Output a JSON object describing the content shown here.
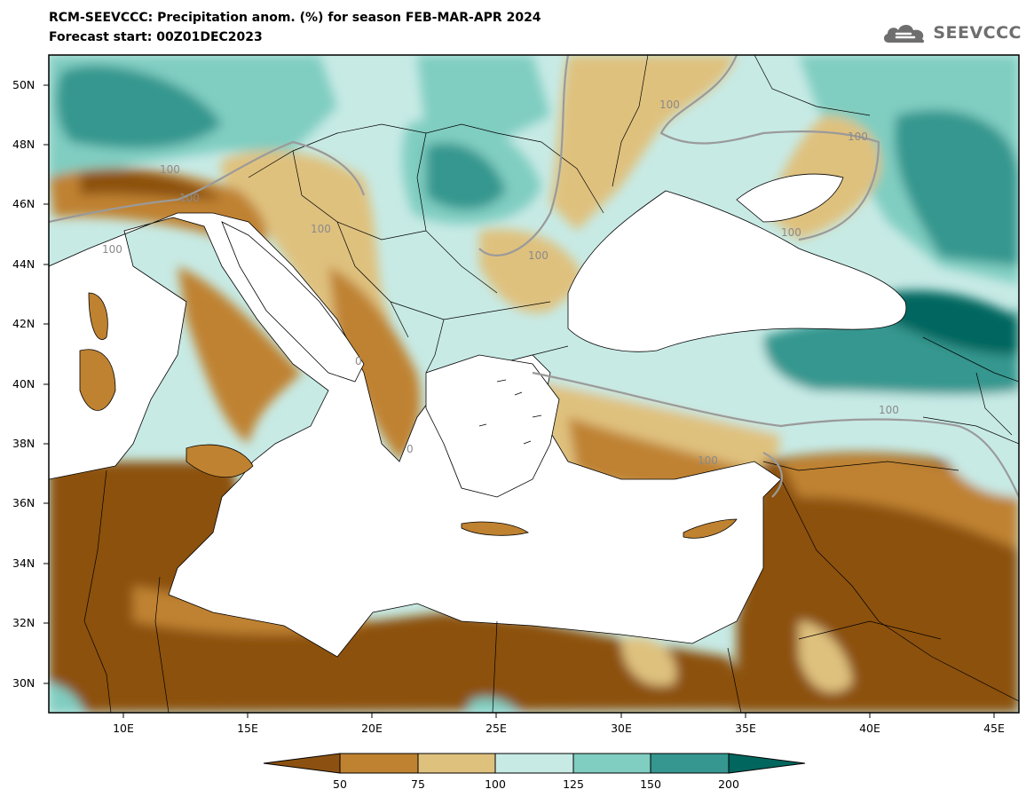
{
  "title_line1": "RCM-SEEVCCC: Precipitation anom. (%) for season FEB-MAR-APR 2024",
  "title_line2": "Forecast start: 00Z01DEC2023",
  "logo": {
    "text": "SEEVCCC",
    "icon": "cloud-icon"
  },
  "map": {
    "lat_ticks": [
      "50N",
      "48N",
      "46N",
      "44N",
      "42N",
      "40N",
      "38N",
      "36N",
      "34N",
      "32N",
      "30N"
    ],
    "lon_ticks": [
      "10E",
      "15E",
      "20E",
      "25E",
      "30E",
      "35E",
      "40E",
      "45E"
    ],
    "contour_labels": [
      "100",
      "100",
      "100",
      "100",
      "100",
      "100",
      "100",
      "100",
      "100",
      "100",
      "0",
      "0"
    ]
  },
  "legend": {
    "labels": [
      "50",
      "75",
      "100",
      "125",
      "150",
      "200"
    ],
    "colors": [
      "#8c5110",
      "#bf8230",
      "#dfc17e",
      "#c7eae5",
      "#80cdc1",
      "#35978f",
      "#01665e"
    ]
  },
  "colors": {
    "sea": "#ffffff",
    "dry_strong": "#8c5110",
    "dry": "#bf8230",
    "dry_light": "#dfc17e",
    "wet_light": "#c7eae5",
    "wet": "#80cdc1",
    "wet_strong": "#35978f",
    "wet_extreme": "#01665e"
  }
}
